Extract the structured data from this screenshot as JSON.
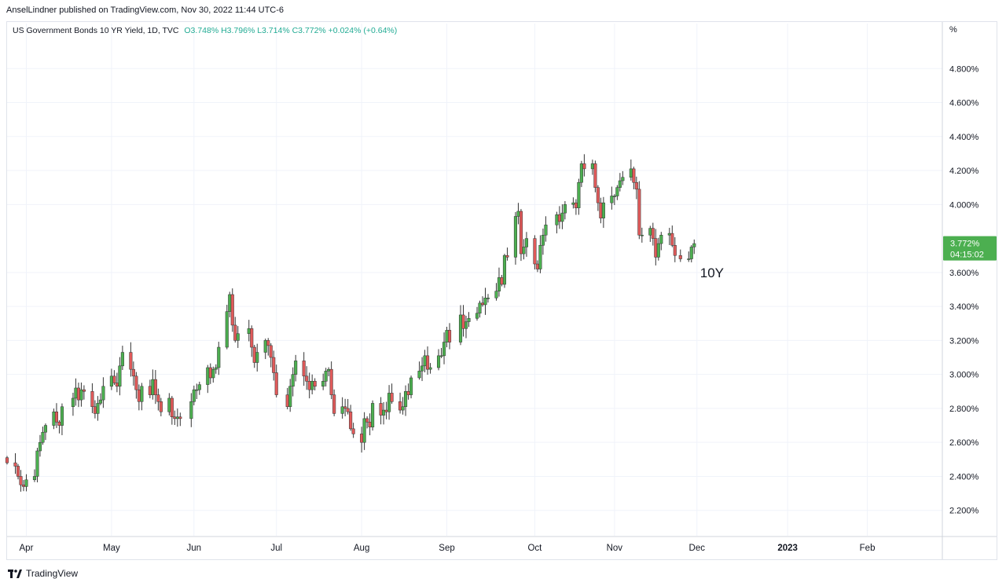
{
  "header": {
    "published": "AnselLindner published on TradingView.com, Nov 30, 2022 11:44 UTC-6",
    "symbol": "US Government Bonds 10 YR Yield, 1D, TVC",
    "ohlc": "O3.748%  H3.796%  L3.714%  C3.772%  +0.024% (+0.64%)"
  },
  "footer": {
    "brand": "TradingView"
  },
  "chart_data": {
    "type": "candlestick",
    "unit_label": "%",
    "y_ticks": [
      "2.200%",
      "2.400%",
      "2.600%",
      "2.800%",
      "3.000%",
      "3.200%",
      "3.400%",
      "3.600%",
      "4.000%",
      "4.200%",
      "4.400%",
      "4.600%",
      "4.800%"
    ],
    "ylim": [
      2.06,
      5.0
    ],
    "x_ticks": [
      {
        "label": "Apr",
        "date": "2022-04-01"
      },
      {
        "label": "May",
        "date": "2022-05-02"
      },
      {
        "label": "Jun",
        "date": "2022-06-01"
      },
      {
        "label": "Jul",
        "date": "2022-07-01"
      },
      {
        "label": "Aug",
        "date": "2022-08-01"
      },
      {
        "label": "Sep",
        "date": "2022-09-01"
      },
      {
        "label": "Oct",
        "date": "2022-10-03"
      },
      {
        "label": "Nov",
        "date": "2022-11-01"
      },
      {
        "label": "Dec",
        "date": "2022-12-01"
      },
      {
        "label": "2023",
        "date": "2023-01-03"
      },
      {
        "label": "Feb",
        "date": "2023-02-01"
      }
    ],
    "xlim": [
      "2022-03-25",
      "2023-02-28"
    ],
    "annotation": {
      "text": "10Y",
      "date": "2022-12-01",
      "value": 3.6
    },
    "last_price": {
      "value": "3.772%",
      "countdown": "04:15:02",
      "color": "#4caf50"
    },
    "colors": {
      "up": "#4caf50",
      "down": "#e05a5a",
      "wick": "#333333"
    },
    "close_series": [
      [
        "2022-03-25",
        2.48
      ],
      [
        "2022-03-28",
        2.46
      ],
      [
        "2022-03-29",
        2.4
      ],
      [
        "2022-03-30",
        2.35
      ],
      [
        "2022-03-31",
        2.34
      ],
      [
        "2022-04-01",
        2.38
      ],
      [
        "2022-04-04",
        2.4
      ],
      [
        "2022-04-05",
        2.55
      ],
      [
        "2022-04-06",
        2.6
      ],
      [
        "2022-04-07",
        2.66
      ],
      [
        "2022-04-08",
        2.7
      ],
      [
        "2022-04-11",
        2.78
      ],
      [
        "2022-04-12",
        2.72
      ],
      [
        "2022-04-13",
        2.7
      ],
      [
        "2022-04-14",
        2.81
      ],
      [
        "2022-04-18",
        2.86
      ],
      [
        "2022-04-19",
        2.92
      ],
      [
        "2022-04-20",
        2.85
      ],
      [
        "2022-04-21",
        2.91
      ],
      [
        "2022-04-22",
        2.9
      ],
      [
        "2022-04-25",
        2.81
      ],
      [
        "2022-04-26",
        2.77
      ],
      [
        "2022-04-27",
        2.83
      ],
      [
        "2022-04-28",
        2.85
      ],
      [
        "2022-04-29",
        2.93
      ],
      [
        "2022-05-02",
        2.99
      ],
      [
        "2022-05-03",
        2.95
      ],
      [
        "2022-05-04",
        2.93
      ],
      [
        "2022-05-05",
        3.05
      ],
      [
        "2022-05-06",
        3.13
      ],
      [
        "2022-05-09",
        3.03
      ],
      [
        "2022-05-10",
        2.99
      ],
      [
        "2022-05-11",
        2.91
      ],
      [
        "2022-05-12",
        2.84
      ],
      [
        "2022-05-13",
        2.93
      ],
      [
        "2022-05-16",
        2.88
      ],
      [
        "2022-05-17",
        2.97
      ],
      [
        "2022-05-18",
        2.88
      ],
      [
        "2022-05-19",
        2.84
      ],
      [
        "2022-05-20",
        2.78
      ],
      [
        "2022-05-23",
        2.86
      ],
      [
        "2022-05-24",
        2.75
      ],
      [
        "2022-05-25",
        2.74
      ],
      [
        "2022-05-26",
        2.75
      ],
      [
        "2022-05-27",
        2.74
      ],
      [
        "2022-05-31",
        2.84
      ],
      [
        "2022-06-01",
        2.91
      ],
      [
        "2022-06-02",
        2.91
      ],
      [
        "2022-06-03",
        2.94
      ],
      [
        "2022-06-06",
        3.04
      ],
      [
        "2022-06-07",
        2.98
      ],
      [
        "2022-06-08",
        3.03
      ],
      [
        "2022-06-09",
        3.04
      ],
      [
        "2022-06-10",
        3.16
      ],
      [
        "2022-06-13",
        3.37
      ],
      [
        "2022-06-14",
        3.47
      ],
      [
        "2022-06-15",
        3.29
      ],
      [
        "2022-06-16",
        3.2
      ],
      [
        "2022-06-17",
        3.24
      ],
      [
        "2022-06-21",
        3.27
      ],
      [
        "2022-06-22",
        3.16
      ],
      [
        "2022-06-23",
        3.07
      ],
      [
        "2022-06-24",
        3.13
      ],
      [
        "2022-06-27",
        3.2
      ],
      [
        "2022-06-28",
        3.17
      ],
      [
        "2022-06-29",
        3.1
      ],
      [
        "2022-06-30",
        3.01
      ],
      [
        "2022-07-01",
        2.88
      ],
      [
        "2022-07-05",
        2.81
      ],
      [
        "2022-07-06",
        2.93
      ],
      [
        "2022-07-07",
        3.0
      ],
      [
        "2022-07-08",
        3.08
      ],
      [
        "2022-07-11",
        2.99
      ],
      [
        "2022-07-12",
        2.96
      ],
      [
        "2022-07-13",
        2.91
      ],
      [
        "2022-07-14",
        2.96
      ],
      [
        "2022-07-15",
        2.93
      ],
      [
        "2022-07-18",
        2.96
      ],
      [
        "2022-07-19",
        3.02
      ],
      [
        "2022-07-20",
        3.03
      ],
      [
        "2022-07-21",
        2.88
      ],
      [
        "2022-07-22",
        2.77
      ],
      [
        "2022-07-25",
        2.81
      ],
      [
        "2022-07-26",
        2.8
      ],
      [
        "2022-07-27",
        2.78
      ],
      [
        "2022-07-28",
        2.68
      ],
      [
        "2022-07-29",
        2.65
      ],
      [
        "2022-08-01",
        2.6
      ],
      [
        "2022-08-02",
        2.74
      ],
      [
        "2022-08-03",
        2.72
      ],
      [
        "2022-08-04",
        2.69
      ],
      [
        "2022-08-05",
        2.83
      ],
      [
        "2022-08-08",
        2.76
      ],
      [
        "2022-08-09",
        2.79
      ],
      [
        "2022-08-10",
        2.78
      ],
      [
        "2022-08-11",
        2.89
      ],
      [
        "2022-08-12",
        2.84
      ],
      [
        "2022-08-15",
        2.79
      ],
      [
        "2022-08-16",
        2.81
      ],
      [
        "2022-08-17",
        2.9
      ],
      [
        "2022-08-18",
        2.88
      ],
      [
        "2022-08-19",
        2.98
      ],
      [
        "2022-08-22",
        3.02
      ],
      [
        "2022-08-23",
        3.05
      ],
      [
        "2022-08-24",
        3.11
      ],
      [
        "2022-08-25",
        3.03
      ],
      [
        "2022-08-26",
        3.04
      ],
      [
        "2022-08-29",
        3.11
      ],
      [
        "2022-08-30",
        3.11
      ],
      [
        "2022-08-31",
        3.19
      ],
      [
        "2022-09-01",
        3.26
      ],
      [
        "2022-09-02",
        3.19
      ],
      [
        "2022-09-06",
        3.35
      ],
      [
        "2022-09-07",
        3.27
      ],
      [
        "2022-09-08",
        3.31
      ],
      [
        "2022-09-09",
        3.33
      ],
      [
        "2022-09-12",
        3.36
      ],
      [
        "2022-09-13",
        3.42
      ],
      [
        "2022-09-14",
        3.41
      ],
      [
        "2022-09-15",
        3.45
      ],
      [
        "2022-09-16",
        3.45
      ],
      [
        "2022-09-19",
        3.49
      ],
      [
        "2022-09-20",
        3.57
      ],
      [
        "2022-09-21",
        3.53
      ],
      [
        "2022-09-22",
        3.7
      ],
      [
        "2022-09-23",
        3.69
      ],
      [
        "2022-09-26",
        3.93
      ],
      [
        "2022-09-27",
        3.96
      ],
      [
        "2022-09-28",
        3.71
      ],
      [
        "2022-09-29",
        3.75
      ],
      [
        "2022-09-30",
        3.8
      ],
      [
        "2022-10-03",
        3.65
      ],
      [
        "2022-10-04",
        3.62
      ],
      [
        "2022-10-05",
        3.76
      ],
      [
        "2022-10-06",
        3.82
      ],
      [
        "2022-10-07",
        3.88
      ],
      [
        "2022-10-11",
        3.94
      ],
      [
        "2022-10-12",
        3.9
      ],
      [
        "2022-10-13",
        3.95
      ],
      [
        "2022-10-14",
        4.0
      ],
      [
        "2022-10-17",
        4.01
      ],
      [
        "2022-10-18",
        3.98
      ],
      [
        "2022-10-19",
        4.13
      ],
      [
        "2022-10-20",
        4.24
      ],
      [
        "2022-10-21",
        4.21
      ],
      [
        "2022-10-24",
        4.24
      ],
      [
        "2022-10-25",
        4.1
      ],
      [
        "2022-10-26",
        4.01
      ],
      [
        "2022-10-27",
        3.92
      ],
      [
        "2022-10-28",
        4.01
      ],
      [
        "2022-10-31",
        4.05
      ],
      [
        "2022-11-01",
        4.05
      ],
      [
        "2022-11-02",
        4.1
      ],
      [
        "2022-11-03",
        4.14
      ],
      [
        "2022-11-04",
        4.16
      ],
      [
        "2022-11-07",
        4.21
      ],
      [
        "2022-11-08",
        4.13
      ],
      [
        "2022-11-09",
        4.09
      ],
      [
        "2022-11-10",
        3.82
      ],
      [
        "2022-11-11",
        3.82
      ],
      [
        "2022-11-14",
        3.86
      ],
      [
        "2022-11-15",
        3.8
      ],
      [
        "2022-11-16",
        3.69
      ],
      [
        "2022-11-17",
        3.77
      ],
      [
        "2022-11-18",
        3.82
      ],
      [
        "2022-11-21",
        3.83
      ],
      [
        "2022-11-22",
        3.76
      ],
      [
        "2022-11-23",
        3.7
      ],
      [
        "2022-11-25",
        3.68
      ],
      [
        "2022-11-28",
        3.68
      ],
      [
        "2022-11-29",
        3.75
      ],
      [
        "2022-11-30",
        3.77
      ]
    ]
  }
}
